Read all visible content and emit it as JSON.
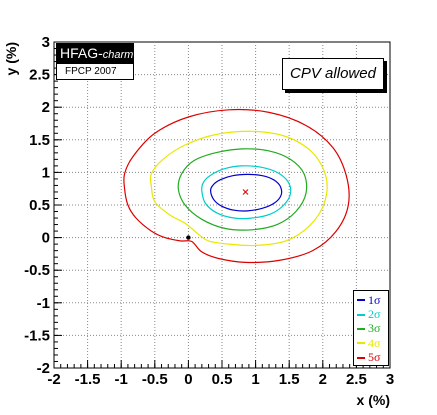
{
  "chart_data": {
    "type": "contour",
    "xlabel": "x (%)",
    "ylabel": "y (%)",
    "xlim": [
      -2,
      3
    ],
    "ylim": [
      -2,
      3
    ],
    "x_ticks": [
      "-2",
      "-1.5",
      "-1",
      "-0.5",
      "0",
      "0.5",
      "1",
      "1.5",
      "2",
      "2.5",
      "3"
    ],
    "y_ticks": [
      "-2",
      "-1.5",
      "-1",
      "-0.5",
      "0",
      "0.5",
      "1",
      "1.5",
      "2",
      "2.5",
      "3"
    ],
    "grid": true,
    "best_fit": {
      "x": 0.85,
      "y": 0.7
    },
    "no_mixing_point": {
      "x": 0,
      "y": 0
    },
    "series": [
      {
        "name": "1σ",
        "color": "#0000cc",
        "points": [
          [
            0.33,
            0.72
          ],
          [
            0.38,
            0.58
          ],
          [
            0.5,
            0.48
          ],
          [
            0.68,
            0.42
          ],
          [
            0.88,
            0.41
          ],
          [
            1.1,
            0.45
          ],
          [
            1.28,
            0.53
          ],
          [
            1.38,
            0.65
          ],
          [
            1.37,
            0.78
          ],
          [
            1.28,
            0.88
          ],
          [
            1.1,
            0.95
          ],
          [
            0.88,
            0.97
          ],
          [
            0.66,
            0.95
          ],
          [
            0.48,
            0.89
          ],
          [
            0.37,
            0.81
          ]
        ]
      },
      {
        "name": "2σ",
        "color": "#00cccc",
        "points": [
          [
            0.2,
            0.72
          ],
          [
            0.25,
            0.53
          ],
          [
            0.42,
            0.38
          ],
          [
            0.68,
            0.3
          ],
          [
            0.95,
            0.3
          ],
          [
            1.22,
            0.36
          ],
          [
            1.42,
            0.5
          ],
          [
            1.52,
            0.68
          ],
          [
            1.48,
            0.86
          ],
          [
            1.32,
            1.0
          ],
          [
            1.08,
            1.08
          ],
          [
            0.78,
            1.1
          ],
          [
            0.52,
            1.05
          ],
          [
            0.32,
            0.95
          ],
          [
            0.22,
            0.84
          ]
        ]
      },
      {
        "name": "3σ",
        "color": "#22aa22",
        "points": [
          [
            -0.15,
            0.75
          ],
          [
            -0.05,
            0.5
          ],
          [
            0.2,
            0.28
          ],
          [
            0.55,
            0.14
          ],
          [
            0.95,
            0.12
          ],
          [
            1.32,
            0.2
          ],
          [
            1.6,
            0.4
          ],
          [
            1.75,
            0.68
          ],
          [
            1.72,
            0.98
          ],
          [
            1.52,
            1.2
          ],
          [
            1.2,
            1.33
          ],
          [
            0.8,
            1.36
          ],
          [
            0.4,
            1.3
          ],
          [
            0.08,
            1.18
          ],
          [
            -0.1,
            0.98
          ]
        ]
      },
      {
        "name": "4σ",
        "color": "#e8e800",
        "points": [
          [
            -0.55,
            0.78
          ],
          [
            -0.5,
            0.55
          ],
          [
            -0.28,
            0.35
          ],
          [
            -0.05,
            0.22
          ],
          [
            0.15,
            0.05
          ],
          [
            0.3,
            -0.05
          ],
          [
            0.6,
            -0.1
          ],
          [
            1.0,
            -0.12
          ],
          [
            1.45,
            -0.05
          ],
          [
            1.8,
            0.18
          ],
          [
            2.02,
            0.52
          ],
          [
            2.05,
            0.92
          ],
          [
            1.85,
            1.3
          ],
          [
            1.45,
            1.55
          ],
          [
            0.95,
            1.63
          ],
          [
            0.4,
            1.58
          ],
          [
            -0.05,
            1.42
          ],
          [
            -0.38,
            1.2
          ],
          [
            -0.55,
            0.98
          ]
        ]
      },
      {
        "name": "5σ",
        "color": "#dd0000",
        "points": [
          [
            -0.95,
            0.75
          ],
          [
            -0.9,
            0.5
          ],
          [
            -0.78,
            0.3
          ],
          [
            -0.55,
            0.1
          ],
          [
            -0.35,
            0.0
          ],
          [
            -0.12,
            -0.05
          ],
          [
            0.05,
            -0.06
          ],
          [
            0.2,
            -0.22
          ],
          [
            0.45,
            -0.32
          ],
          [
            0.85,
            -0.38
          ],
          [
            1.35,
            -0.35
          ],
          [
            1.85,
            -0.2
          ],
          [
            2.2,
            0.1
          ],
          [
            2.38,
            0.5
          ],
          [
            2.35,
            0.95
          ],
          [
            2.15,
            1.38
          ],
          [
            1.75,
            1.72
          ],
          [
            1.2,
            1.92
          ],
          [
            0.6,
            1.96
          ],
          [
            0.0,
            1.85
          ],
          [
            -0.5,
            1.6
          ],
          [
            -0.82,
            1.25
          ],
          [
            -0.95,
            0.98
          ]
        ]
      }
    ]
  },
  "labels": {
    "hfag": "HFAG-",
    "hfag_sub": "charm",
    "conference": "FPCP 2007",
    "scenario": "CPV allowed"
  },
  "legend": {
    "items": [
      {
        "label": "1σ",
        "color": "#0000cc"
      },
      {
        "label": "2σ",
        "color": "#00cccc"
      },
      {
        "label": "3σ",
        "color": "#22aa22"
      },
      {
        "label": "4σ",
        "color": "#e8e800"
      },
      {
        "label": "5σ",
        "color": "#dd0000"
      }
    ]
  }
}
